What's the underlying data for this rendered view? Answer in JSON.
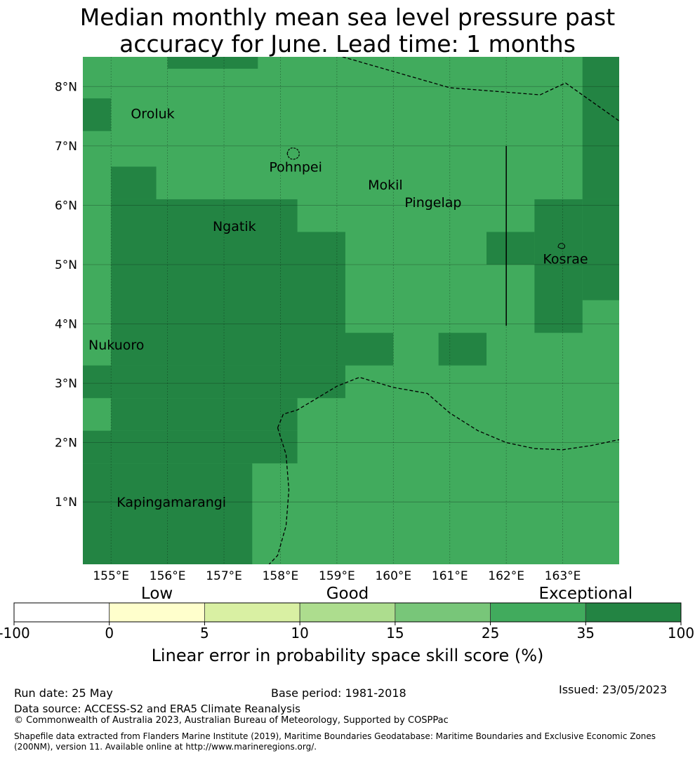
{
  "title": {
    "line1": "Median monthly mean sea level pressure past",
    "line2": "accuracy for June. Lead time: 1 months"
  },
  "map": {
    "lon_range": [
      154.5,
      164.0
    ],
    "lat_range": [
      -0.05,
      8.5
    ],
    "lon_ticks": [
      {
        "value": 155,
        "label": "155°E"
      },
      {
        "value": 156,
        "label": "156°E"
      },
      {
        "value": 157,
        "label": "157°E"
      },
      {
        "value": 158,
        "label": "158°E"
      },
      {
        "value": 159,
        "label": "159°E"
      },
      {
        "value": 160,
        "label": "160°E"
      },
      {
        "value": 161,
        "label": "161°E"
      },
      {
        "value": 162,
        "label": "162°E"
      },
      {
        "value": 163,
        "label": "163°E"
      }
    ],
    "lat_ticks": [
      {
        "value": 1,
        "label": "1°N"
      },
      {
        "value": 2,
        "label": "2°N"
      },
      {
        "value": 3,
        "label": "3°N"
      },
      {
        "value": 4,
        "label": "4°N"
      },
      {
        "value": 5,
        "label": "5°N"
      },
      {
        "value": 6,
        "label": "6°N"
      },
      {
        "value": 7,
        "label": "7°N"
      },
      {
        "value": 8,
        "label": "8°N"
      }
    ],
    "colors": {
      "mid": "#41ab5d",
      "dark": "#238443"
    },
    "dark_cells": [
      {
        "lon": [
          156.0,
          157.6
        ],
        "lat": [
          8.3,
          8.5
        ]
      },
      {
        "lon": [
          154.5,
          155.0
        ],
        "lat": [
          7.25,
          7.8
        ]
      },
      {
        "lon": [
          155.0,
          155.8
        ],
        "lat": [
          6.1,
          6.65
        ]
      },
      {
        "lon": [
          155.0,
          158.3
        ],
        "lat": [
          5.55,
          6.1
        ]
      },
      {
        "lon": [
          155.0,
          159.15
        ],
        "lat": [
          3.3,
          5.55
        ]
      },
      {
        "lon": [
          155.0,
          160.0
        ],
        "lat": [
          3.3,
          3.85
        ]
      },
      {
        "lon": [
          154.5,
          159.15
        ],
        "lat": [
          2.75,
          3.3
        ]
      },
      {
        "lon": [
          155.0,
          158.3
        ],
        "lat": [
          2.2,
          2.75
        ]
      },
      {
        "lon": [
          154.5,
          158.3
        ],
        "lat": [
          1.65,
          2.2
        ]
      },
      {
        "lon": [
          154.5,
          157.5
        ],
        "lat": [
          -0.05,
          1.65
        ]
      },
      {
        "lon": [
          160.8,
          161.65
        ],
        "lat": [
          3.3,
          3.85
        ]
      },
      {
        "lon": [
          161.65,
          162.5
        ],
        "lat": [
          5.0,
          5.55
        ]
      },
      {
        "lon": [
          162.5,
          163.35
        ],
        "lat": [
          3.85,
          6.1
        ]
      },
      {
        "lon": [
          163.35,
          164.0
        ],
        "lat": [
          4.4,
          6.1
        ]
      },
      {
        "lon": [
          163.35,
          164.0
        ],
        "lat": [
          6.1,
          8.5
        ]
      }
    ],
    "places": [
      {
        "name": "Oroluk",
        "lon": 155.35,
        "lat": 7.55
      },
      {
        "name": "Pohnpei",
        "lon": 157.8,
        "lat": 6.65
      },
      {
        "name": "Mokil",
        "lon": 159.55,
        "lat": 6.35
      },
      {
        "name": "Pingelap",
        "lon": 160.2,
        "lat": 6.05
      },
      {
        "name": "Ngatik",
        "lon": 156.8,
        "lat": 5.65
      },
      {
        "name": "Kosrae",
        "lon": 162.65,
        "lat": 5.1
      },
      {
        "name": "Nukuoro",
        "lon": 154.6,
        "lat": 3.65
      },
      {
        "name": "Kapingamarangi",
        "lon": 155.1,
        "lat": 1.0
      }
    ],
    "boundaries": [
      [
        [
          159.1,
          8.5
        ],
        [
          161.0,
          7.98
        ],
        [
          162.6,
          7.86
        ],
        [
          163.05,
          8.06
        ],
        [
          164.0,
          7.42
        ]
      ],
      [
        [
          157.95,
          2.25
        ],
        [
          158.05,
          2.48
        ],
        [
          158.3,
          2.55
        ],
        [
          159.0,
          2.95
        ],
        [
          159.4,
          3.1
        ],
        [
          160.0,
          2.93
        ],
        [
          160.6,
          2.83
        ],
        [
          161.0,
          2.5
        ],
        [
          161.5,
          2.2
        ],
        [
          162.0,
          2.0
        ],
        [
          162.5,
          1.9
        ],
        [
          163.0,
          1.88
        ],
        [
          163.5,
          1.95
        ],
        [
          164.0,
          2.05
        ]
      ],
      [
        [
          157.95,
          2.25
        ],
        [
          158.1,
          1.8
        ],
        [
          158.15,
          1.2
        ],
        [
          158.1,
          0.6
        ],
        [
          157.95,
          0.1
        ],
        [
          157.8,
          -0.05
        ]
      ]
    ],
    "solid_line": [
      [
        162.0,
        7.0
      ],
      [
        162.0,
        3.97
      ]
    ]
  },
  "colorbar": {
    "category_labels": [
      {
        "text": "Low",
        "at": 1.5
      },
      {
        "text": "Good",
        "at": 3.5
      },
      {
        "text": "Exceptional",
        "at": 6
      }
    ],
    "bins": [
      "#ffffff",
      "#ffffcc",
      "#d9f0a3",
      "#addd8e",
      "#78c679",
      "#41ab5d",
      "#238443"
    ],
    "tick_labels": [
      "-100",
      "0",
      "5",
      "10",
      "15",
      "25",
      "35",
      "100"
    ],
    "label": "Linear error in probability space skill score (%)"
  },
  "footer": {
    "run_date": "Run date: 25 May",
    "base_period": "Base period: 1981-2018",
    "issued": "Issued: 23/05/2023",
    "data_source": "Data source: ACCESS-S2 and ERA5 Climate Reanalysis",
    "copyright": "© Commonwealth of Australia 2023, Australian Bureau of Meteorology, Supported by COSPPac",
    "shapefile_line1": "Shapefile data extracted from Flanders Marine Institute (2019), Maritime Boundaries Geodatabase: Maritime Boundaries and Exclusive Economic Zones",
    "shapefile_line2": "(200NM), version 11. Available online at http://www.marineregions.org/."
  }
}
